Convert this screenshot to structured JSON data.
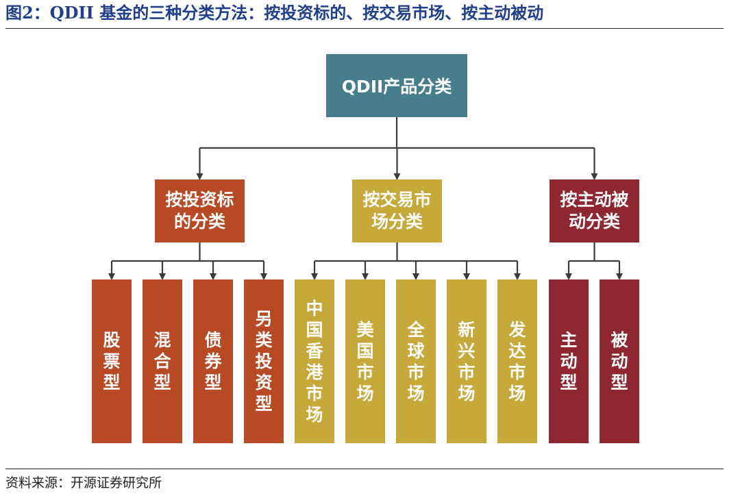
{
  "figure": {
    "title": "图2：QDII 基金的三种分类方法：按投资标的、按交易市场、按主动被动",
    "source": "资料来源：开源证券研究所"
  },
  "colors": {
    "root": "#467f8b",
    "group_1": "#b74a25",
    "group_2": "#c6a93a",
    "group_3": "#8e2732",
    "connector": "#3a3a3a",
    "title": "#1f3f8c"
  },
  "diagram": {
    "root": {
      "label": "QDII产品分类"
    },
    "groups": [
      {
        "label": "按投资标的分类",
        "children": [
          "股票型",
          "混合型",
          "债券型",
          "另类投资型"
        ]
      },
      {
        "label": "按交易市场分类",
        "children": [
          "中国香港市场",
          "美国市场",
          "全球市场",
          "新兴市场",
          "发达市场"
        ]
      },
      {
        "label": "按主动被动分类",
        "children": [
          "主动型",
          "被动型"
        ]
      }
    ]
  }
}
